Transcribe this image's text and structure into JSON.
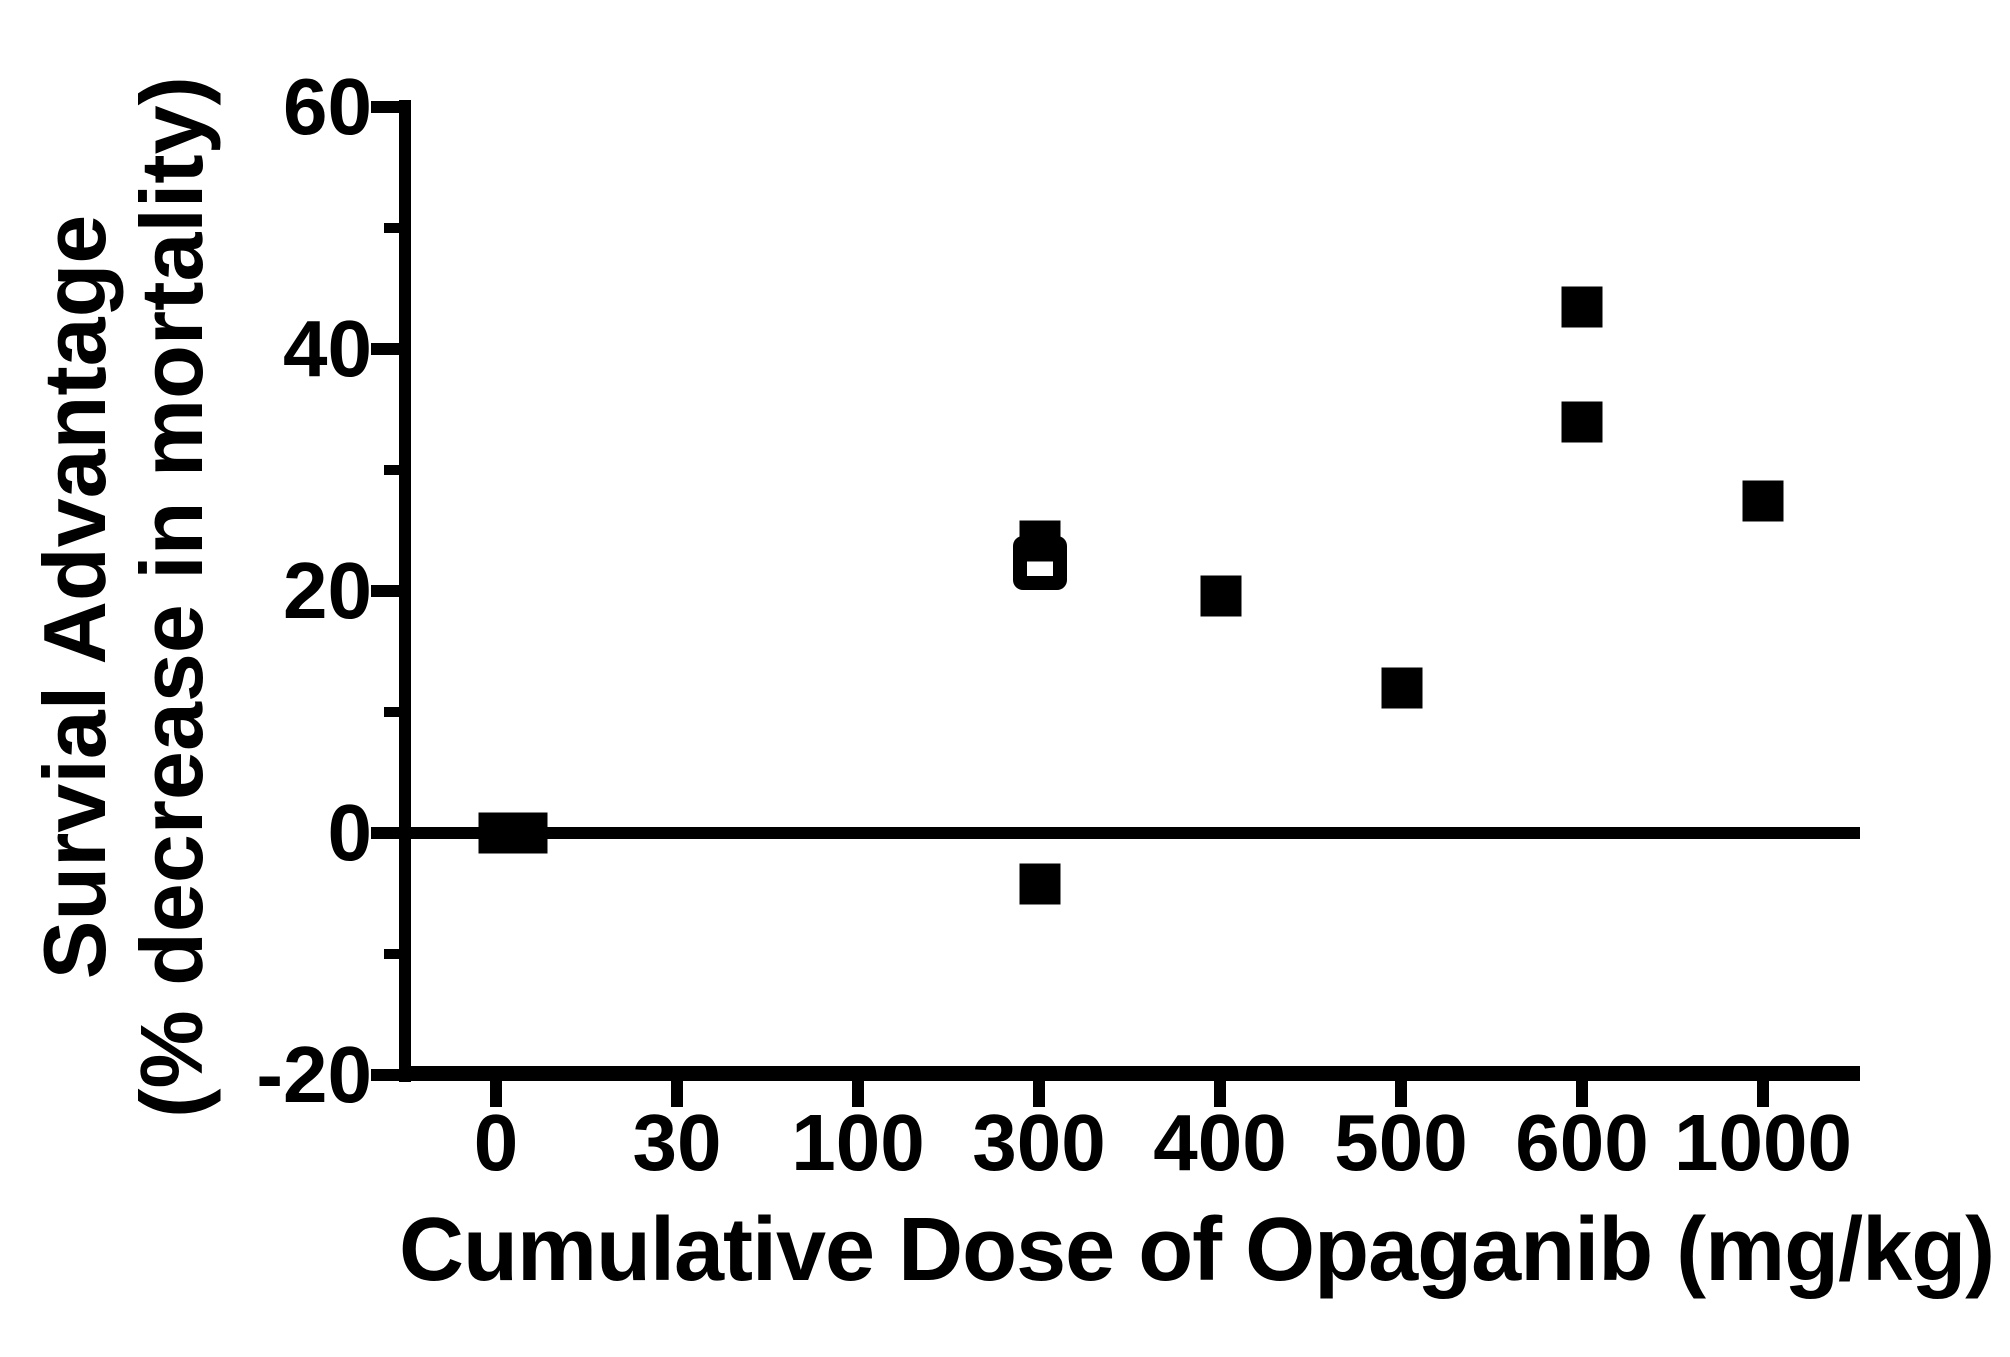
{
  "chart_data": {
    "type": "scatter",
    "title": "",
    "xlabel": "Cumulative Dose of Opaganib (mg/kg)",
    "ylabel_line1": "Survial Advantage",
    "ylabel_line2": "(% decrease in mortality)",
    "x_categories": [
      "0",
      "30",
      "100",
      "300",
      "400",
      "500",
      "600",
      "1000"
    ],
    "y_major_ticks": [
      60,
      40,
      20,
      0,
      -20
    ],
    "y_minor_ticks": [
      50,
      30,
      10,
      -10
    ],
    "ylim": [
      -20,
      60
    ],
    "grid": false,
    "zero_line_at": 0,
    "legend": "none",
    "marker_color": "#000000",
    "background_color": "#ffffff",
    "points": [
      {
        "x": "0",
        "y": 0,
        "marker": "filled",
        "dodge": 3
      },
      {
        "x": "0",
        "y": 0,
        "marker": "filled",
        "dodge": 31
      },
      {
        "x": "300",
        "y": 22.3,
        "marker": "open",
        "dodge": 1
      },
      {
        "x": "300",
        "y": 24.1,
        "marker": "filled",
        "dodge": 1
      },
      {
        "x": "300",
        "y": -4.2,
        "marker": "filled",
        "dodge": 1
      },
      {
        "x": "400",
        "y": 19.6,
        "marker": "filled",
        "dodge": 1
      },
      {
        "x": "500",
        "y": 12.0,
        "marker": "filled",
        "dodge": 1
      },
      {
        "x": "600",
        "y": 43.5,
        "marker": "filled",
        "dodge": 0
      },
      {
        "x": "600",
        "y": 34.0,
        "marker": "filled",
        "dodge": 0
      },
      {
        "x": "1000",
        "y": 27.4,
        "marker": "filled",
        "dodge": 0
      }
    ]
  }
}
